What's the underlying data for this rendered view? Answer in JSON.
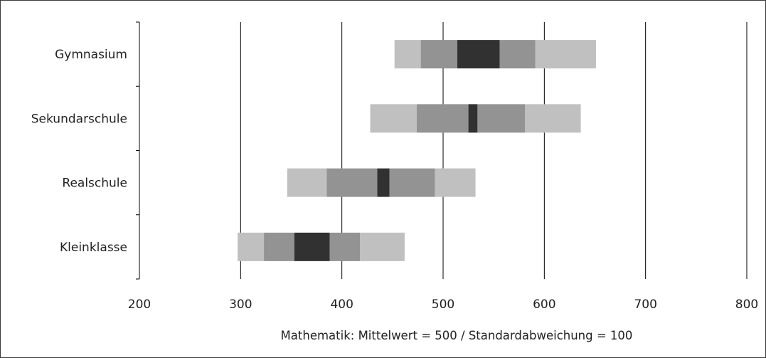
{
  "chart_data": {
    "type": "bar",
    "subtype": "percentile-band",
    "orientation": "horizontal",
    "categories": [
      "Gymnasium",
      "Sekundarschule",
      "Realschule",
      "Kleinklasse"
    ],
    "xlabel": "Mathematik: Mittelwert = 500 / Standardabweichung = 100",
    "xlim": [
      200,
      800
    ],
    "xticks": [
      200,
      300,
      400,
      500,
      600,
      700,
      800
    ],
    "grid": "vertical",
    "legend": "none",
    "colors": {
      "outer": "#c0c0c0",
      "inner": "#939393",
      "center": "#313131",
      "gridline": "#000000",
      "axis": "#000000"
    },
    "bands": [
      {
        "category": "Gymnasium",
        "p5": 452,
        "p25": 478,
        "ci_low": 514,
        "ci_high": 556,
        "p75": 591,
        "p95": 651
      },
      {
        "category": "Sekundarschule",
        "p5": 428,
        "p25": 474,
        "ci_low": 525,
        "ci_high": 534,
        "p75": 581,
        "p95": 636
      },
      {
        "category": "Realschule",
        "p5": 346,
        "p25": 385,
        "ci_low": 435,
        "ci_high": 447,
        "p75": 492,
        "p95": 532
      },
      {
        "category": "Kleinklasse",
        "p5": 297,
        "p25": 323,
        "ci_low": 353,
        "ci_high": 388,
        "p75": 418,
        "p95": 462
      }
    ]
  }
}
